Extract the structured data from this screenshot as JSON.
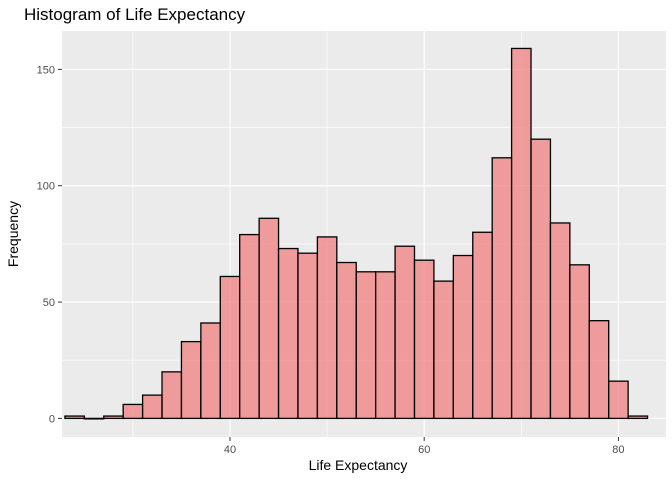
{
  "chart_data": {
    "type": "bar",
    "title": "Histogram of Life Expectancy",
    "xlabel": "Life Expectancy",
    "ylabel": "Frequency",
    "bins": [
      {
        "center": 24.0,
        "count": 1
      },
      {
        "center": 26.0,
        "count": 0
      },
      {
        "center": 28.0,
        "count": 1
      },
      {
        "center": 30.0,
        "count": 6
      },
      {
        "center": 32.0,
        "count": 10
      },
      {
        "center": 34.0,
        "count": 20
      },
      {
        "center": 36.0,
        "count": 33
      },
      {
        "center": 38.0,
        "count": 41
      },
      {
        "center": 40.0,
        "count": 61
      },
      {
        "center": 42.0,
        "count": 79
      },
      {
        "center": 44.0,
        "count": 86
      },
      {
        "center": 46.0,
        "count": 73
      },
      {
        "center": 48.0,
        "count": 71
      },
      {
        "center": 50.0,
        "count": 78
      },
      {
        "center": 52.0,
        "count": 67
      },
      {
        "center": 54.0,
        "count": 63
      },
      {
        "center": 56.0,
        "count": 63
      },
      {
        "center": 58.0,
        "count": 74
      },
      {
        "center": 60.0,
        "count": 68
      },
      {
        "center": 62.0,
        "count": 59
      },
      {
        "center": 64.0,
        "count": 70
      },
      {
        "center": 66.0,
        "count": 80
      },
      {
        "center": 68.0,
        "count": 112
      },
      {
        "center": 70.0,
        "count": 159
      },
      {
        "center": 72.0,
        "count": 120
      },
      {
        "center": 74.0,
        "count": 84
      },
      {
        "center": 76.0,
        "count": 66
      },
      {
        "center": 78.0,
        "count": 42
      },
      {
        "center": 80.0,
        "count": 16
      },
      {
        "center": 82.0,
        "count": 1
      }
    ],
    "bin_width": 2.0,
    "xlim": [
      22.7,
      84.9
    ],
    "ylim": [
      -8,
      166.5
    ],
    "x_ticks": [
      40,
      60,
      80
    ],
    "y_ticks": [
      0,
      50,
      100,
      150
    ],
    "x_tick_labels": [
      "40",
      "60",
      "80"
    ],
    "y_tick_labels": [
      "0",
      "50",
      "100",
      "150"
    ],
    "grid": true,
    "colors": {
      "fill": "#f08080",
      "fill_opacity": 0.75,
      "outline": "#000000",
      "panel_background": "#ebebeb",
      "grid_major": "#ffffff"
    }
  }
}
